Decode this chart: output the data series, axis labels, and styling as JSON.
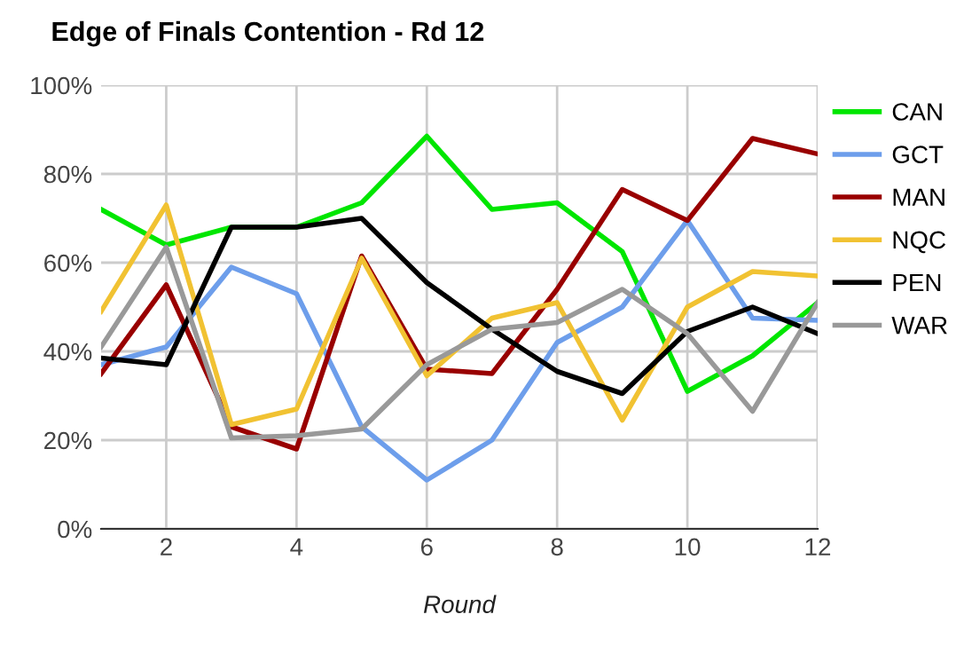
{
  "chart_data": {
    "type": "line",
    "title": "Edge of Finals Contention - Rd 12",
    "xlabel": "Round",
    "x": [
      1,
      2,
      3,
      4,
      5,
      6,
      7,
      8,
      9,
      10,
      11,
      12
    ],
    "series": [
      {
        "name": "CAN",
        "color": "#00e600",
        "values": [
          72,
          64,
          68,
          68,
          73.5,
          88.5,
          72,
          73.5,
          62.5,
          31,
          39,
          51
        ]
      },
      {
        "name": "GCT",
        "color": "#6d9eeb",
        "values": [
          37,
          41,
          59,
          53,
          23,
          11,
          20,
          42,
          50,
          69.5,
          47.5,
          47
        ]
      },
      {
        "name": "MAN",
        "color": "#990000",
        "values": [
          35,
          55,
          23,
          18,
          61.5,
          36,
          35,
          54,
          76.5,
          69.5,
          88,
          84.5
        ]
      },
      {
        "name": "NQC",
        "color": "#f1c232",
        "values": [
          49,
          73,
          23.5,
          27,
          61,
          34.5,
          47.5,
          51,
          24.5,
          50,
          58,
          57
        ]
      },
      {
        "name": "PEN",
        "color": "#000000",
        "values": [
          38.5,
          37,
          68,
          68,
          70,
          55.5,
          45,
          35.5,
          30.5,
          44.5,
          50,
          44
        ]
      },
      {
        "name": "WAR",
        "color": "#999999",
        "values": [
          41,
          63.5,
          20.5,
          21,
          22.5,
          37,
          45,
          46.5,
          54,
          44,
          26.5,
          51
        ]
      }
    ],
    "xlim": [
      1,
      12
    ],
    "xticks": [
      2,
      4,
      6,
      8,
      10,
      12
    ],
    "ylim": [
      0,
      100
    ],
    "yticks": [
      {
        "value": 0,
        "label": "0%"
      },
      {
        "value": 20,
        "label": "20%"
      },
      {
        "value": 40,
        "label": "40%"
      },
      {
        "value": 60,
        "label": "60%"
      },
      {
        "value": 80,
        "label": "80%"
      },
      {
        "value": 100,
        "label": "100%"
      }
    ],
    "grid": true,
    "legend": "right",
    "marker": "none",
    "line_style": "solid"
  }
}
